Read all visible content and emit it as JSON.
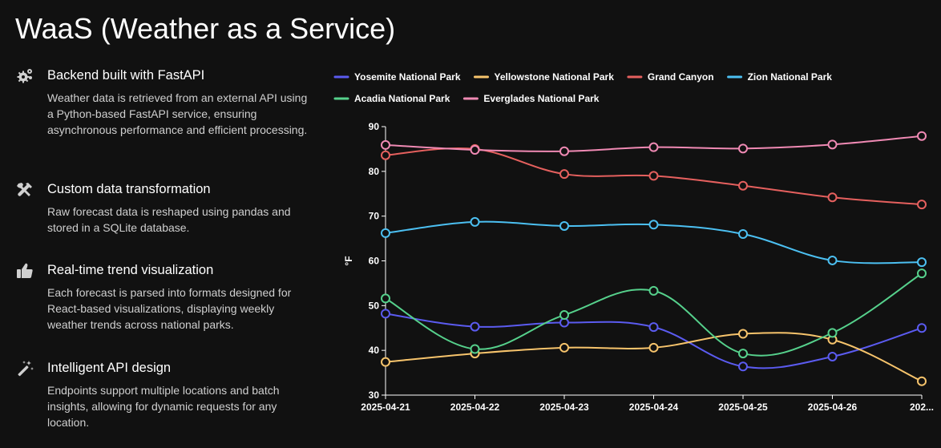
{
  "page": {
    "title": "WaaS (Weather as a Service)"
  },
  "features": [
    {
      "icon": "gear-bolt-icon",
      "title": "Backend built with FastAPI",
      "desc": "Weather data is retrieved from an external API using a Python-based FastAPI service, ensuring asynchronous performance and efficient processing."
    },
    {
      "icon": "tools-icon",
      "title": "Custom data transformation",
      "desc": "Raw forecast data is reshaped using pandas and stored in a SQLite database."
    },
    {
      "icon": "thumbs-up-icon",
      "title": "Real-time trend visualization",
      "desc": "Each forecast is parsed into formats designed for React-based visualizations, displaying weekly weather trends across national parks."
    },
    {
      "icon": "magic-wand-icon",
      "title": "Intelligent API design",
      "desc": "Endpoints support multiple locations and batch insights, allowing for dynamic requests for any location."
    }
  ],
  "chart_data": {
    "type": "line",
    "x": [
      "2025-04-21",
      "2025-04-22",
      "2025-04-23",
      "2025-04-24",
      "2025-04-25",
      "2025-04-26",
      "202..."
    ],
    "ylabel": "°F",
    "ylim": [
      30,
      90
    ],
    "yticks": [
      30,
      40,
      50,
      60,
      70,
      80,
      90
    ],
    "grid": false,
    "legend_position": "top",
    "series": [
      {
        "name": "Yosemite National Park",
        "color": "#5b5bf0",
        "values": [
          48.2,
          45.3,
          46.2,
          45.2,
          36.4,
          38.6,
          45.0
        ]
      },
      {
        "name": "Yellowstone National Park",
        "color": "#f7c46c",
        "values": [
          37.4,
          39.3,
          40.6,
          40.6,
          43.7,
          42.4,
          33.1
        ]
      },
      {
        "name": "Grand Canyon",
        "color": "#e5605e",
        "values": [
          83.6,
          85.0,
          79.4,
          79.0,
          76.8,
          74.2,
          72.6
        ]
      },
      {
        "name": "Zion National Park",
        "color": "#4cc0f2",
        "values": [
          66.2,
          68.7,
          67.8,
          68.1,
          66.0,
          60.1,
          59.7
        ]
      },
      {
        "name": "Acadia National Park",
        "color": "#56d18c",
        "values": [
          51.6,
          40.3,
          47.9,
          53.3,
          39.3,
          43.9,
          57.2
        ]
      },
      {
        "name": "Everglades National Park",
        "color": "#f08ab4",
        "values": [
          85.9,
          84.8,
          84.5,
          85.4,
          85.1,
          86.0,
          87.9
        ]
      }
    ]
  }
}
